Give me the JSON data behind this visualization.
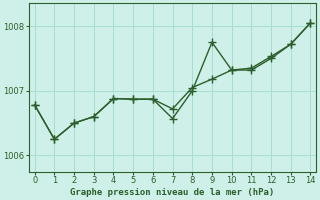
{
  "title": "Graphe pression niveau de la mer (hPa)",
  "bg_color": "#cef0e8",
  "line_color": "#2d5e2d",
  "line1_y": [
    1006.78,
    1006.25,
    1006.5,
    1006.6,
    1006.88,
    1006.87,
    1006.87,
    1006.57,
    1007.0,
    1007.75,
    1007.32,
    1007.32,
    1007.5,
    1007.72,
    1008.05
  ],
  "line2_y": [
    1006.78,
    1006.25,
    1006.5,
    1006.6,
    1006.88,
    1006.87,
    1006.87,
    1006.72,
    1007.05,
    1007.18,
    1007.32,
    1007.35,
    1007.53,
    1007.72,
    1008.05
  ],
  "x": [
    0,
    1,
    2,
    3,
    4,
    5,
    6,
    7,
    8,
    9,
    10,
    11,
    12,
    13,
    14
  ],
  "xlim": [
    -0.3,
    14.3
  ],
  "ylim": [
    1005.75,
    1008.35
  ],
  "yticks": [
    1006,
    1007,
    1008
  ],
  "xticks": [
    0,
    1,
    2,
    3,
    4,
    5,
    6,
    7,
    8,
    9,
    10,
    11,
    12,
    13,
    14
  ],
  "grid_color": "#a8ddd0",
  "marker_size": 3,
  "linewidth": 1.0
}
